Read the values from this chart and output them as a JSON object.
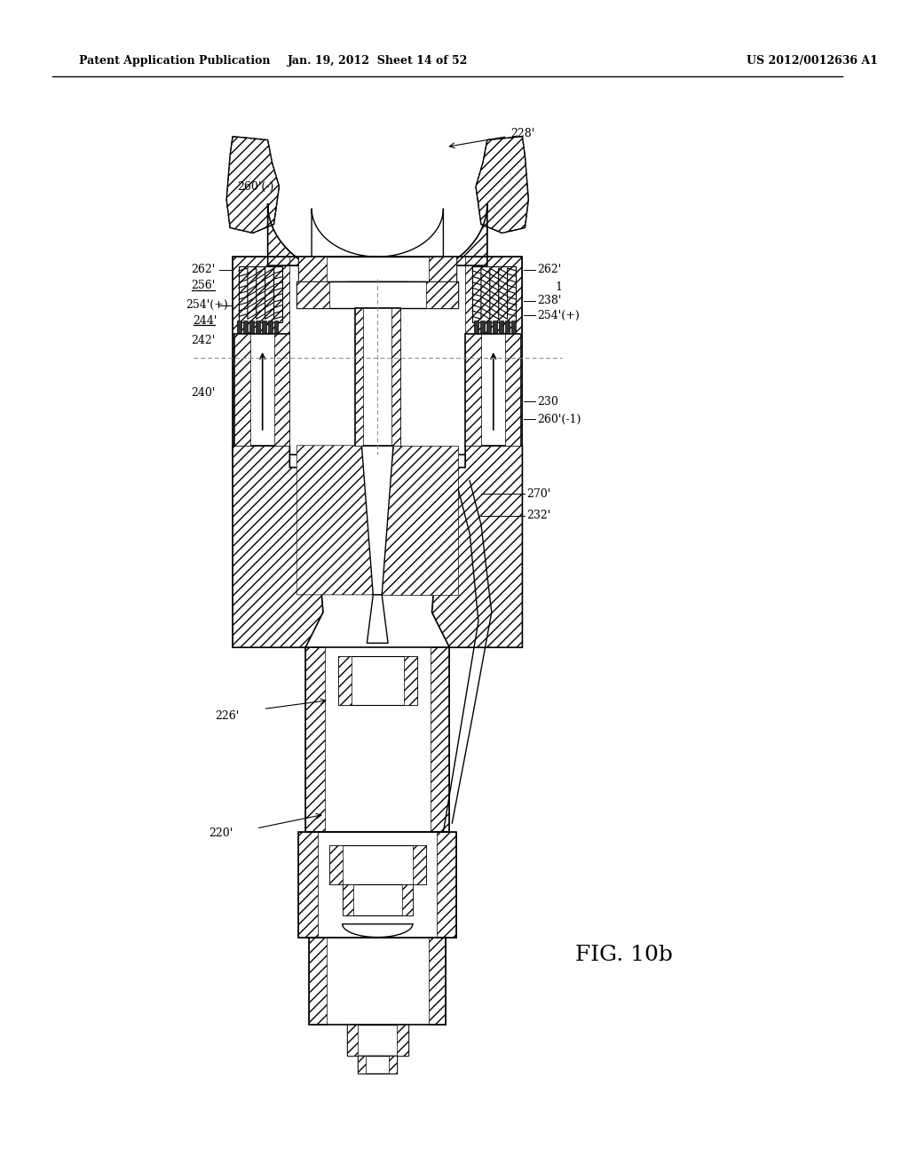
{
  "title_left": "Patent Application Publication",
  "title_center": "Jan. 19, 2012  Sheet 14 of 52",
  "title_right": "US 2012/0012636 A1",
  "figure_label": "FIG. 10b",
  "bg_color": "#ffffff",
  "line_color": "#000000",
  "hatch_color": "#000000",
  "labels": {
    "228p": "228'",
    "260p_neg": "260'(-)",
    "262p_left": "262'",
    "256p": "256'",
    "254p_plus_left": "254'(+)",
    "244p": "244'",
    "242p": "242'",
    "240p": "240'",
    "262p_right": "262'",
    "238p": "238'",
    "254p_plus_right": "254'(+)",
    "230": "230",
    "260p_neg1": "260'(-1)",
    "270p": "270'",
    "232p": "232'",
    "226p": "226'",
    "220p": "220'",
    "1": "1"
  }
}
